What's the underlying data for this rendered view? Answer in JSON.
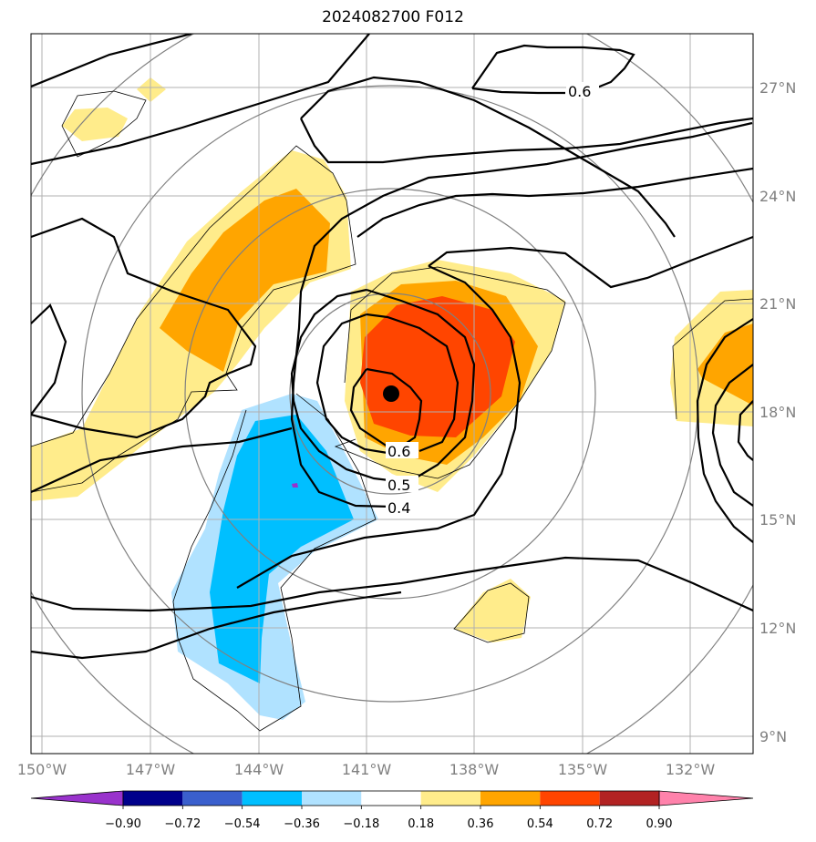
{
  "title": "2024082700 F012",
  "lon_ticks": [
    "150°W",
    "147°W",
    "144°W",
    "141°W",
    "138°W",
    "135°W",
    "132°W"
  ],
  "lat_ticks": [
    "27°N",
    "24°N",
    "21°N",
    "18°N",
    "15°N",
    "12°N",
    "9°N"
  ],
  "contour_labels": [
    "0.6",
    "0.6",
    "0.5",
    "0.4"
  ],
  "colorbar": {
    "tick_labels": [
      "−0.90",
      "−0.72",
      "−0.54",
      "−0.36",
      "−0.18",
      "0.18",
      "0.36",
      "0.54",
      "0.72",
      "0.90"
    ],
    "colors": [
      "#9932cc",
      "#00008b",
      "#3a5fcd",
      "#00bfff",
      "#b0e2ff",
      "#ffffff",
      "#ffec8b",
      "#ffa500",
      "#ff4500",
      "#b22222",
      "#ff82ab"
    ]
  },
  "colors": {
    "contour": "#000000",
    "grid": "#b0b0b0",
    "range_rings": "#808080",
    "center_marker": "#000000"
  }
}
